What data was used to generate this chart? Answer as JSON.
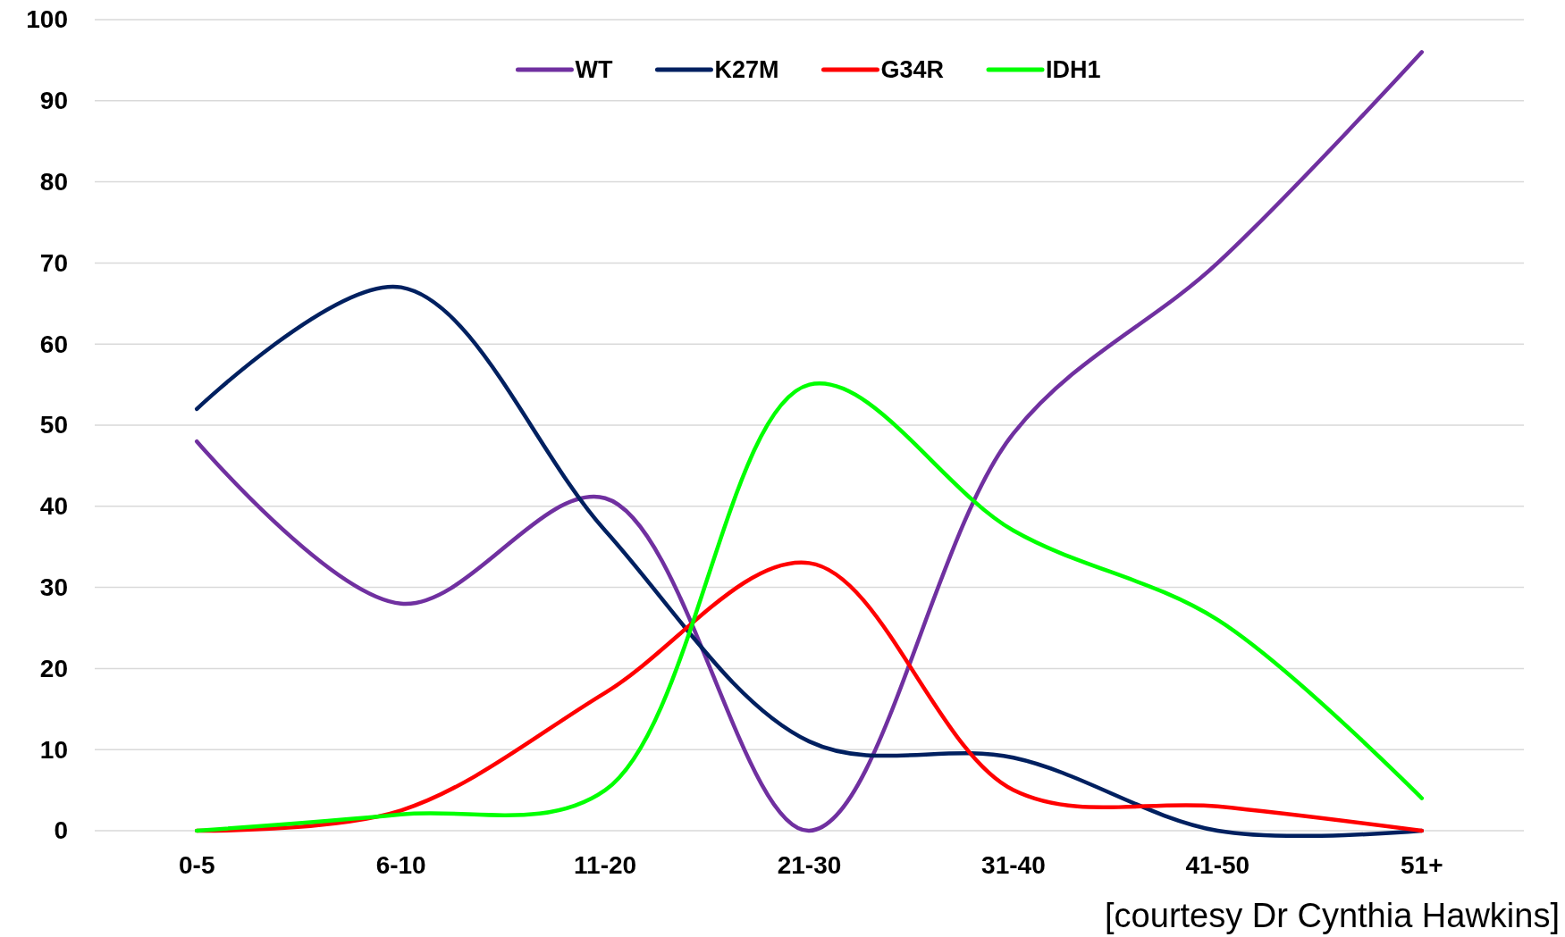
{
  "chart_data": {
    "type": "line",
    "categories": [
      "0-5",
      "6-10",
      "11-20",
      "21-30",
      "31-40",
      "41-50",
      "51+"
    ],
    "series": [
      {
        "name": "WT",
        "color": "#7030a0",
        "values": [
          48,
          28,
          41,
          0,
          49,
          70,
          96
        ]
      },
      {
        "name": "K27M",
        "color": "#002060",
        "values": [
          52,
          67,
          37,
          11,
          9,
          0,
          0
        ]
      },
      {
        "name": "G34R",
        "color": "#ff0000",
        "values": [
          0,
          2.5,
          17,
          33,
          5,
          3,
          0
        ]
      },
      {
        "name": "IDH1",
        "color": "#00ff00",
        "values": [
          0,
          2,
          5,
          55,
          37,
          26,
          4
        ]
      }
    ],
    "ylim": [
      0,
      100
    ],
    "yticks": [
      0,
      10,
      20,
      30,
      40,
      50,
      60,
      70,
      80,
      90,
      100
    ],
    "grid": "y",
    "legend": "top",
    "marker": "none",
    "line_style": "solid",
    "annotations": [
      "[courtesy Dr Cynthia Hawkins]"
    ]
  }
}
